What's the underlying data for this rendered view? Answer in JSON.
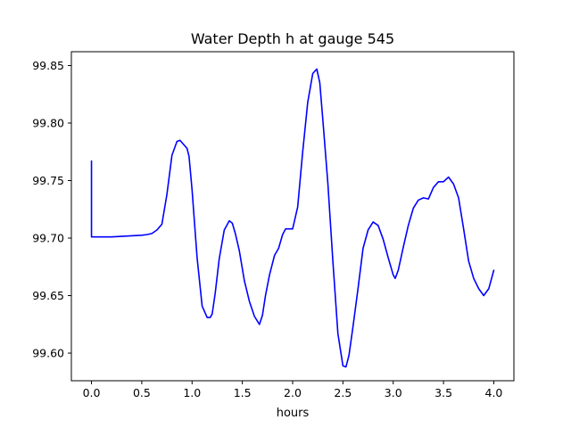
{
  "chart_data": {
    "type": "line",
    "title": "Water Depth h at gauge 545",
    "xlabel": "hours",
    "ylabel": "",
    "xlim": [
      -0.2,
      4.2
    ],
    "ylim": [
      99.576,
      99.862
    ],
    "x_ticks": [
      0.0,
      0.5,
      1.0,
      1.5,
      2.0,
      2.5,
      3.0,
      3.5,
      4.0
    ],
    "x_tick_labels": [
      "0.0",
      "0.5",
      "1.0",
      "1.5",
      "2.0",
      "2.5",
      "3.0",
      "3.5",
      "4.0"
    ],
    "y_ticks": [
      99.6,
      99.65,
      99.7,
      99.75,
      99.8,
      99.85
    ],
    "y_tick_labels": [
      "99.60",
      "99.65",
      "99.70",
      "99.75",
      "99.80",
      "99.85"
    ],
    "grid": false,
    "legend": "none",
    "series": [
      {
        "color": "#0000ff",
        "x": [
          0.0,
          0.0,
          0.0,
          0.1,
          0.2,
          0.3,
          0.4,
          0.5,
          0.55,
          0.6,
          0.65,
          0.7,
          0.75,
          0.8,
          0.85,
          0.88,
          0.92,
          0.95,
          0.97,
          1.0,
          1.05,
          1.1,
          1.15,
          1.18,
          1.2,
          1.23,
          1.27,
          1.32,
          1.37,
          1.4,
          1.43,
          1.47,
          1.52,
          1.57,
          1.62,
          1.67,
          1.7,
          1.73,
          1.77,
          1.82,
          1.86,
          1.9,
          1.93,
          1.96,
          2.0,
          2.05,
          2.1,
          2.15,
          2.2,
          2.24,
          2.27,
          2.3,
          2.35,
          2.4,
          2.45,
          2.5,
          2.53,
          2.56,
          2.6,
          2.65,
          2.7,
          2.75,
          2.8,
          2.85,
          2.9,
          2.95,
          3.0,
          3.02,
          3.05,
          3.1,
          3.15,
          3.2,
          3.25,
          3.3,
          3.35,
          3.4,
          3.45,
          3.5,
          3.55,
          3.6,
          3.65,
          3.7,
          3.75,
          3.8,
          3.85,
          3.9,
          3.95,
          4.0
        ],
        "y": [
          99.767,
          99.701,
          99.701,
          99.701,
          99.701,
          99.7015,
          99.702,
          99.7025,
          99.703,
          99.704,
          99.707,
          99.712,
          99.738,
          99.772,
          99.784,
          99.785,
          99.781,
          99.778,
          99.771,
          99.742,
          99.683,
          99.641,
          99.631,
          99.631,
          99.634,
          99.652,
          99.682,
          99.707,
          99.715,
          99.713,
          99.704,
          99.689,
          99.663,
          99.645,
          99.632,
          99.625,
          99.633,
          99.65,
          99.668,
          99.685,
          99.691,
          99.703,
          99.708,
          99.708,
          99.708,
          99.727,
          99.775,
          99.818,
          99.843,
          99.847,
          99.835,
          99.803,
          99.748,
          99.68,
          99.617,
          99.589,
          99.588,
          99.598,
          99.623,
          99.656,
          99.691,
          99.707,
          99.714,
          99.711,
          99.699,
          99.683,
          99.668,
          99.665,
          99.672,
          99.692,
          99.711,
          99.726,
          99.733,
          99.735,
          99.734,
          99.744,
          99.749,
          99.749,
          99.753,
          99.747,
          99.735,
          99.708,
          99.68,
          99.665,
          99.656,
          99.65,
          99.656,
          99.672
        ]
      }
    ]
  }
}
